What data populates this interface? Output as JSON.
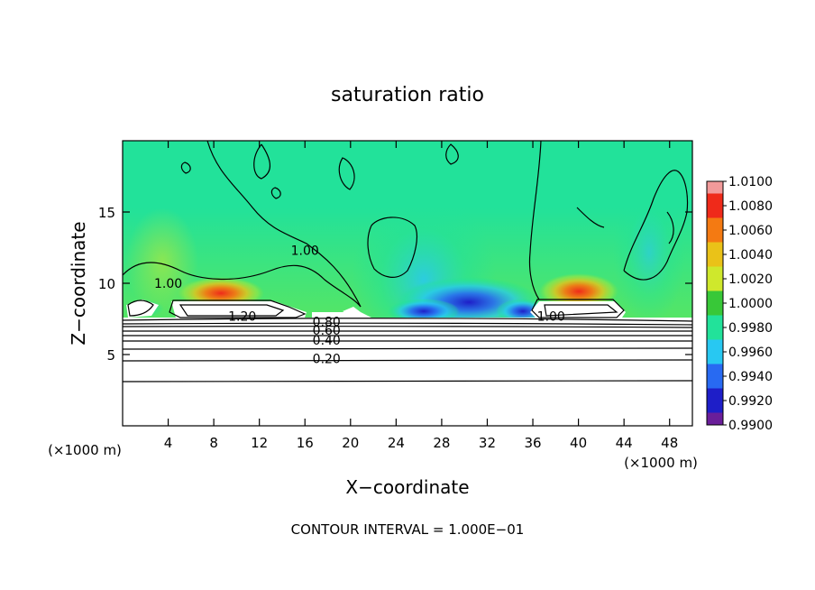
{
  "chart_data": {
    "type": "heatmap",
    "title": "saturation ratio",
    "xlabel": "X−coordinate",
    "ylabel": "Z−coordinate",
    "x_unit_left": "(×1000 m)",
    "x_unit_right": "(×1000 m)",
    "footer": "CONTOUR INTERVAL = 1.000E−01",
    "xlim": [
      0,
      50
    ],
    "ylim": [
      0,
      20
    ],
    "x_ticks": [
      4,
      8,
      12,
      16,
      20,
      24,
      28,
      32,
      36,
      40,
      44,
      48
    ],
    "y_ticks": [
      5,
      10,
      15
    ],
    "colorbar": {
      "levels": [
        "1.0100",
        "1.0080",
        "1.0060",
        "1.0040",
        "1.0020",
        "1.0000",
        "0.9980",
        "0.9960",
        "0.9940",
        "0.9920",
        "0.9900"
      ],
      "values": [
        1.01,
        1.008,
        1.006,
        1.004,
        1.002,
        1.0,
        0.998,
        0.996,
        0.994,
        0.992,
        0.99
      ],
      "colors": [
        "#f29a9a",
        "#ef2a1a",
        "#f47a12",
        "#eac218",
        "#cfe82c",
        "#38c838",
        "#22e29a",
        "#28c8f2",
        "#286af2",
        "#1e1ec8",
        "#6a1e9a"
      ]
    },
    "background_value": 0.999,
    "contour_labels": [
      {
        "text": "1.00",
        "x": 16.0,
        "z": 12.3
      },
      {
        "text": "1.00",
        "x": 4.0,
        "z": 10.0
      },
      {
        "text": "1.00",
        "x": 37.6,
        "z": 7.7
      },
      {
        "text": "1.20",
        "x": 10.5,
        "z": 7.7
      },
      {
        "text": "0.80",
        "x": 17.9,
        "z": 7.3
      },
      {
        "text": "0.60",
        "x": 17.9,
        "z": 6.7
      },
      {
        "text": "0.40",
        "x": 17.9,
        "z": 6.0
      },
      {
        "text": "0.20",
        "x": 17.9,
        "z": 4.7
      }
    ]
  }
}
